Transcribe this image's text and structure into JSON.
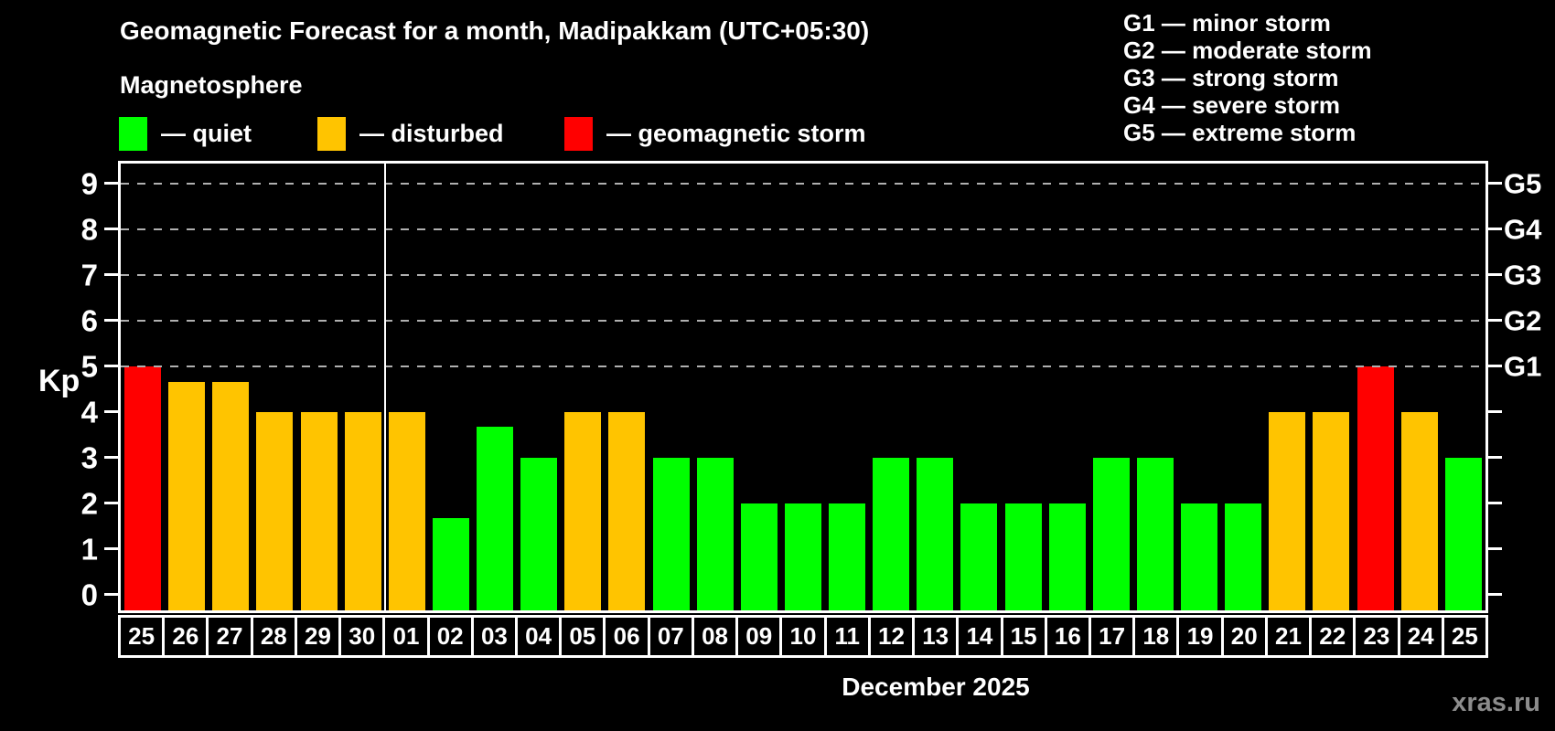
{
  "title": "Geomagnetic Forecast for a month, Madipakkam (UTC+05:30)",
  "subtitle": "Magnetosphere",
  "legend": [
    {
      "label": "— quiet",
      "color": "#00ff00",
      "status": "quiet"
    },
    {
      "label": "— disturbed",
      "color": "#ffc400",
      "status": "disturbed"
    },
    {
      "label": "— geomagnetic storm",
      "color": "#ff0000",
      "status": "storm"
    }
  ],
  "g_scale_legend": [
    "G1 — minor storm",
    "G2 — moderate storm",
    "G3 — strong storm",
    "G4 — severe storm",
    "G5 — extreme storm"
  ],
  "watermark": "xras.ru",
  "colors": {
    "background": "#000000",
    "quiet": "#00ff00",
    "disturbed": "#ffc400",
    "storm": "#ff0000",
    "grid": "#b0b0b0",
    "frame": "#ffffff",
    "watermark_gray": "#8c8c8c"
  },
  "chart_data": {
    "type": "bar",
    "title": "Geomagnetic Forecast for a month, Madipakkam (UTC+05:30)",
    "ylabel": "Kp",
    "xlabel": "December 2025",
    "ylim": [
      -0.35,
      9.45
    ],
    "y_ticks": [
      0,
      1,
      2,
      3,
      4,
      5,
      6,
      7,
      8,
      9
    ],
    "gridlines_at": [
      5,
      6,
      7,
      8,
      9
    ],
    "grid_style": "dashed",
    "legend_position": "top",
    "right_axis_labels": [
      {
        "value": 5,
        "label": "G1"
      },
      {
        "value": 6,
        "label": "G2"
      },
      {
        "value": 7,
        "label": "G3"
      },
      {
        "value": 8,
        "label": "G4"
      },
      {
        "value": 9,
        "label": "G5"
      }
    ],
    "month_separator_after_index": 5,
    "categories": [
      "25",
      "26",
      "27",
      "28",
      "29",
      "30",
      "01",
      "02",
      "03",
      "04",
      "05",
      "06",
      "07",
      "08",
      "09",
      "10",
      "11",
      "12",
      "13",
      "14",
      "15",
      "16",
      "17",
      "18",
      "19",
      "20",
      "21",
      "22",
      "23",
      "24",
      "25"
    ],
    "values": [
      5.0,
      4.67,
      4.67,
      4.0,
      4.0,
      4.0,
      4.0,
      1.67,
      3.67,
      3.0,
      4.0,
      4.0,
      3.0,
      3.0,
      2.0,
      2.0,
      2.0,
      3.0,
      3.0,
      2.0,
      2.0,
      2.0,
      3.0,
      3.0,
      2.0,
      2.0,
      4.0,
      4.0,
      5.0,
      4.0,
      3.0
    ],
    "bars": [
      {
        "day": "25",
        "kp": 5.0,
        "status": "storm"
      },
      {
        "day": "26",
        "kp": 4.67,
        "status": "disturbed"
      },
      {
        "day": "27",
        "kp": 4.67,
        "status": "disturbed"
      },
      {
        "day": "28",
        "kp": 4.0,
        "status": "disturbed"
      },
      {
        "day": "29",
        "kp": 4.0,
        "status": "disturbed"
      },
      {
        "day": "30",
        "kp": 4.0,
        "status": "disturbed"
      },
      {
        "day": "01",
        "kp": 4.0,
        "status": "disturbed"
      },
      {
        "day": "02",
        "kp": 1.67,
        "status": "quiet"
      },
      {
        "day": "03",
        "kp": 3.67,
        "status": "quiet"
      },
      {
        "day": "04",
        "kp": 3.0,
        "status": "quiet"
      },
      {
        "day": "05",
        "kp": 4.0,
        "status": "disturbed"
      },
      {
        "day": "06",
        "kp": 4.0,
        "status": "disturbed"
      },
      {
        "day": "07",
        "kp": 3.0,
        "status": "quiet"
      },
      {
        "day": "08",
        "kp": 3.0,
        "status": "quiet"
      },
      {
        "day": "09",
        "kp": 2.0,
        "status": "quiet"
      },
      {
        "day": "10",
        "kp": 2.0,
        "status": "quiet"
      },
      {
        "day": "11",
        "kp": 2.0,
        "status": "quiet"
      },
      {
        "day": "12",
        "kp": 3.0,
        "status": "quiet"
      },
      {
        "day": "13",
        "kp": 3.0,
        "status": "quiet"
      },
      {
        "day": "14",
        "kp": 2.0,
        "status": "quiet"
      },
      {
        "day": "15",
        "kp": 2.0,
        "status": "quiet"
      },
      {
        "day": "16",
        "kp": 2.0,
        "status": "quiet"
      },
      {
        "day": "17",
        "kp": 3.0,
        "status": "quiet"
      },
      {
        "day": "18",
        "kp": 3.0,
        "status": "quiet"
      },
      {
        "day": "19",
        "kp": 2.0,
        "status": "quiet"
      },
      {
        "day": "20",
        "kp": 2.0,
        "status": "quiet"
      },
      {
        "day": "21",
        "kp": 4.0,
        "status": "disturbed"
      },
      {
        "day": "22",
        "kp": 4.0,
        "status": "disturbed"
      },
      {
        "day": "23",
        "kp": 5.0,
        "status": "storm"
      },
      {
        "day": "24",
        "kp": 4.0,
        "status": "disturbed"
      },
      {
        "day": "25",
        "kp": 3.0,
        "status": "quiet"
      }
    ]
  }
}
